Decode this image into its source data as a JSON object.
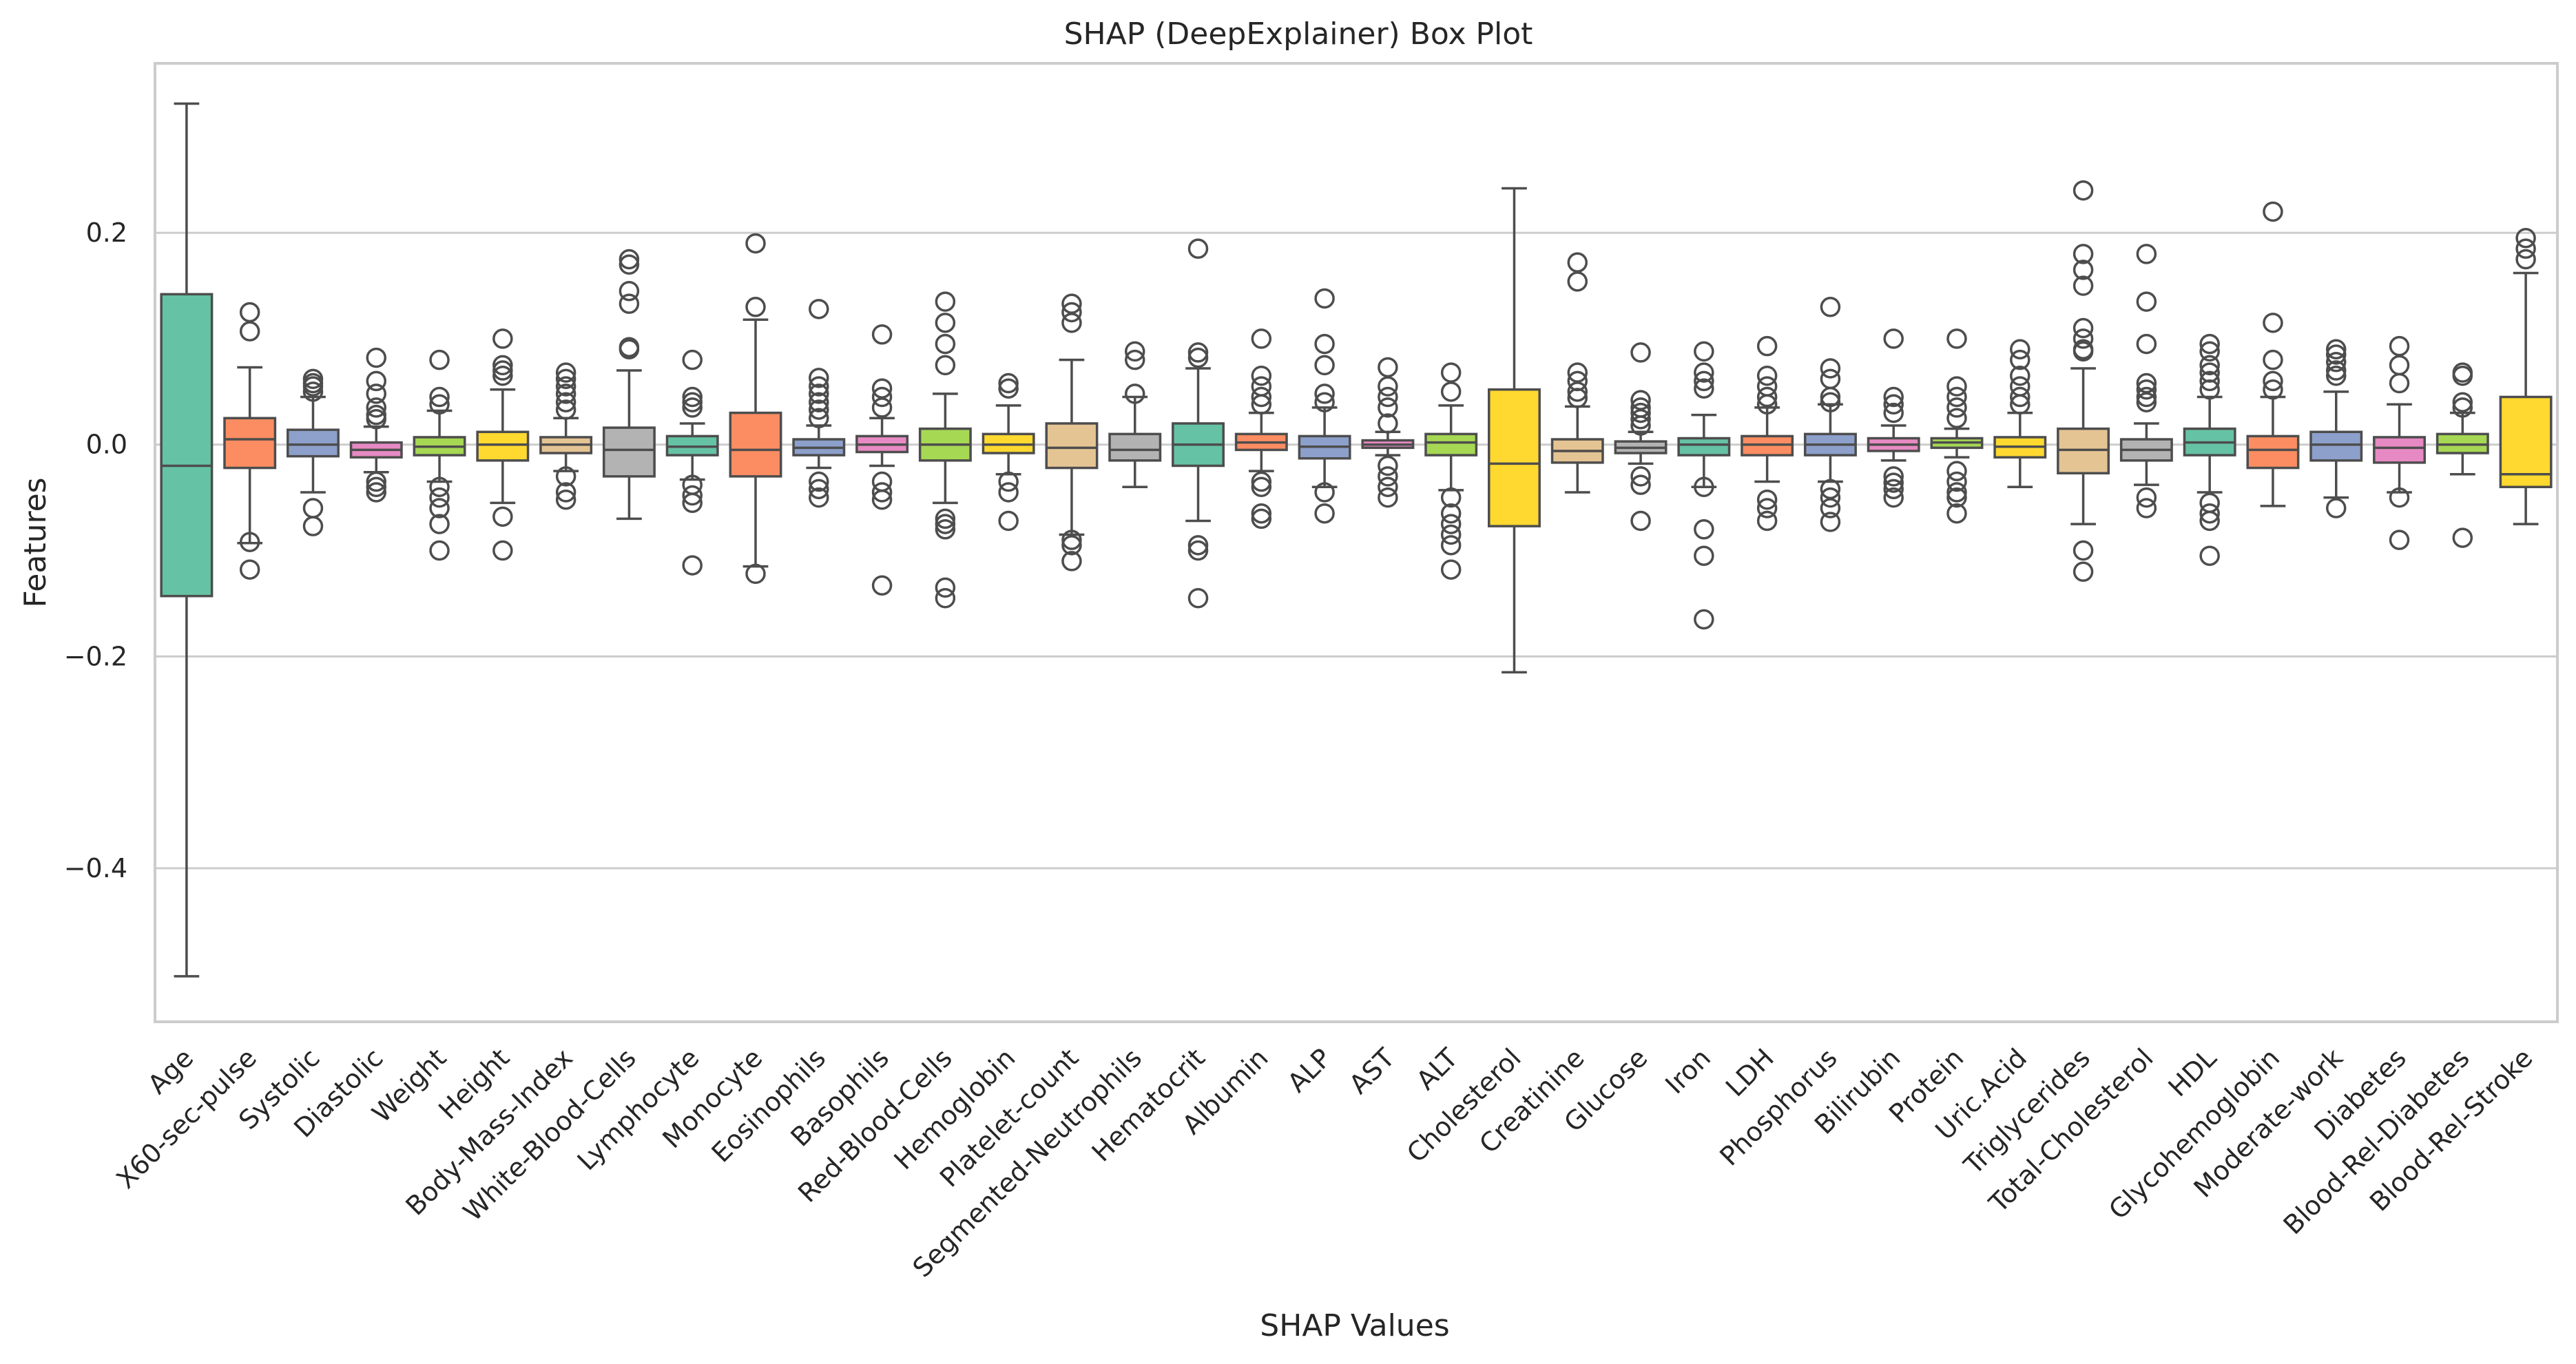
{
  "chart_data": {
    "type": "box",
    "title": "SHAP (DeepExplainer) Box Plot",
    "xlabel": "SHAP Values",
    "ylabel": "Features",
    "ylim": [
      -0.545,
      0.36
    ],
    "yticks": [
      0.2,
      0.0,
      -0.2,
      -0.4
    ],
    "ytick_labels": [
      "0.2",
      "0.0",
      "−0.2",
      "−0.4"
    ],
    "grid": "horizontal",
    "palette": [
      "#66c2a5",
      "#fc8d62",
      "#8da0cb",
      "#e78ac3",
      "#a6d854",
      "#ffd92f",
      "#e5c494",
      "#b3b3b3"
    ],
    "box_edge_color": "#4d4d4d",
    "series": [
      {
        "name": "Age",
        "stats": [
          -0.502,
          -0.143,
          -0.02,
          0.142,
          0.322
        ],
        "outliers": []
      },
      {
        "name": "X60-sec-pulse",
        "stats": [
          -0.093,
          -0.022,
          0.005,
          0.025,
          0.073
        ],
        "outliers": [
          0.125,
          0.107,
          -0.092,
          -0.118
        ]
      },
      {
        "name": "Systolic",
        "stats": [
          -0.045,
          -0.011,
          0.0,
          0.014,
          0.045
        ],
        "outliers": [
          0.062,
          0.058,
          0.055,
          0.05,
          -0.06,
          -0.077
        ]
      },
      {
        "name": "Diastolic",
        "stats": [
          -0.026,
          -0.012,
          -0.005,
          0.002,
          0.017
        ],
        "outliers": [
          0.082,
          0.06,
          0.048,
          0.035,
          0.028,
          0.024,
          -0.035,
          -0.04,
          -0.045
        ]
      },
      {
        "name": "Weight",
        "stats": [
          -0.035,
          -0.01,
          -0.002,
          0.007,
          0.032
        ],
        "outliers": [
          0.08,
          0.045,
          0.038,
          -0.04,
          -0.05,
          -0.06,
          -0.075,
          -0.1
        ]
      },
      {
        "name": "Height",
        "stats": [
          -0.055,
          -0.015,
          0.0,
          0.012,
          0.052
        ],
        "outliers": [
          0.1,
          0.075,
          0.07,
          0.065,
          -0.068,
          -0.1
        ]
      },
      {
        "name": "Body-Mass-Index",
        "stats": [
          -0.025,
          -0.008,
          0.0,
          0.007,
          0.025
        ],
        "outliers": [
          0.068,
          0.062,
          0.055,
          0.048,
          0.04,
          0.033,
          -0.03,
          -0.045,
          -0.052
        ]
      },
      {
        "name": "White-Blood-Cells",
        "stats": [
          -0.07,
          -0.03,
          -0.005,
          0.016,
          0.07
        ],
        "outliers": [
          0.175,
          0.17,
          0.145,
          0.133,
          0.092,
          0.09
        ]
      },
      {
        "name": "Lymphocyte",
        "stats": [
          -0.033,
          -0.01,
          -0.002,
          0.008,
          0.02
        ],
        "outliers": [
          0.08,
          0.045,
          0.04,
          0.035,
          -0.038,
          -0.048,
          -0.055,
          -0.114
        ]
      },
      {
        "name": "Monocyte",
        "stats": [
          -0.115,
          -0.03,
          -0.005,
          0.03,
          0.118
        ],
        "outliers": [
          0.19,
          0.13,
          -0.122
        ]
      },
      {
        "name": "Eosinophils",
        "stats": [
          -0.022,
          -0.01,
          -0.003,
          0.005,
          0.018
        ],
        "outliers": [
          0.128,
          0.063,
          0.055,
          0.048,
          0.04,
          0.033,
          0.025,
          -0.035,
          -0.042,
          -0.05
        ]
      },
      {
        "name": "Basophils",
        "stats": [
          -0.02,
          -0.007,
          0.0,
          0.008,
          0.025
        ],
        "outliers": [
          0.104,
          0.053,
          0.045,
          0.035,
          -0.035,
          -0.045,
          -0.052,
          -0.133
        ]
      },
      {
        "name": "Red-Blood-Cells",
        "stats": [
          -0.055,
          -0.015,
          0.0,
          0.015,
          0.048
        ],
        "outliers": [
          0.135,
          0.115,
          0.095,
          0.075,
          -0.07,
          -0.075,
          -0.08,
          -0.135,
          -0.145
        ]
      },
      {
        "name": "Hemoglobin",
        "stats": [
          -0.028,
          -0.008,
          0.0,
          0.01,
          0.037
        ],
        "outliers": [
          0.058,
          0.053,
          -0.035,
          -0.045,
          -0.072
        ]
      },
      {
        "name": "Platelet-count",
        "stats": [
          -0.085,
          -0.022,
          -0.003,
          0.02,
          0.08
        ],
        "outliers": [
          0.133,
          0.125,
          0.115,
          -0.09,
          -0.095,
          -0.11
        ]
      },
      {
        "name": "Segmented-Neutrophils",
        "stats": [
          -0.04,
          -0.015,
          -0.005,
          0.01,
          0.045
        ],
        "outliers": [
          0.088,
          0.08,
          0.048
        ]
      },
      {
        "name": "Hematocrit",
        "stats": [
          -0.072,
          -0.02,
          0.0,
          0.02,
          0.072
        ],
        "outliers": [
          0.185,
          0.087,
          0.082,
          -0.095,
          -0.1,
          -0.145
        ]
      },
      {
        "name": "Albumin",
        "stats": [
          -0.025,
          -0.005,
          0.002,
          0.01,
          0.03
        ],
        "outliers": [
          0.1,
          0.065,
          0.055,
          0.045,
          0.038,
          -0.035,
          -0.04,
          -0.065,
          -0.07
        ]
      },
      {
        "name": "ALP",
        "stats": [
          -0.04,
          -0.013,
          -0.002,
          0.008,
          0.035
        ],
        "outliers": [
          0.138,
          0.095,
          0.075,
          0.048,
          0.04,
          -0.045,
          -0.065
        ]
      },
      {
        "name": "AST",
        "stats": [
          -0.01,
          -0.003,
          0.0,
          0.004,
          0.012
        ],
        "outliers": [
          0.073,
          0.055,
          0.045,
          0.035,
          0.02,
          -0.02,
          -0.03,
          -0.04,
          -0.05
        ]
      },
      {
        "name": "ALT",
        "stats": [
          -0.043,
          -0.01,
          0.002,
          0.01,
          0.037
        ],
        "outliers": [
          0.068,
          0.05,
          -0.05,
          -0.065,
          -0.075,
          -0.085,
          -0.095,
          -0.118
        ]
      },
      {
        "name": "Cholesterol",
        "stats": [
          -0.215,
          -0.077,
          -0.018,
          0.052,
          0.242
        ],
        "outliers": []
      },
      {
        "name": "Creatinine",
        "stats": [
          -0.045,
          -0.017,
          -0.006,
          0.005,
          0.036
        ],
        "outliers": [
          0.172,
          0.154,
          0.068,
          0.06,
          0.05,
          0.044
        ]
      },
      {
        "name": "Glucose",
        "stats": [
          -0.018,
          -0.008,
          -0.003,
          0.003,
          0.012
        ],
        "outliers": [
          0.087,
          0.042,
          0.035,
          0.03,
          0.024,
          0.018,
          -0.03,
          -0.038,
          -0.072
        ]
      },
      {
        "name": "Iron",
        "stats": [
          -0.04,
          -0.01,
          0.0,
          0.006,
          0.028
        ],
        "outliers": [
          0.088,
          0.068,
          0.06,
          0.053,
          -0.04,
          -0.08,
          -0.105,
          -0.165
        ]
      },
      {
        "name": "LDH",
        "stats": [
          -0.035,
          -0.01,
          0.0,
          0.008,
          0.035
        ],
        "outliers": [
          0.093,
          0.065,
          0.055,
          0.045,
          0.038,
          -0.052,
          -0.06,
          -0.072
        ]
      },
      {
        "name": "Phosphorus",
        "stats": [
          -0.035,
          -0.01,
          0.0,
          0.01,
          0.038
        ],
        "outliers": [
          0.13,
          0.072,
          0.062,
          0.045,
          0.04,
          -0.042,
          -0.05,
          -0.06,
          -0.073
        ]
      },
      {
        "name": "Bilirubin",
        "stats": [
          -0.015,
          -0.006,
          0.0,
          0.006,
          0.018
        ],
        "outliers": [
          0.1,
          0.045,
          0.038,
          0.03,
          -0.03,
          -0.036,
          -0.042,
          -0.05
        ]
      },
      {
        "name": "Protein",
        "stats": [
          -0.012,
          -0.003,
          0.002,
          0.006,
          0.015
        ],
        "outliers": [
          0.1,
          0.055,
          0.045,
          0.035,
          0.025,
          -0.025,
          -0.035,
          -0.045,
          -0.05,
          -0.065
        ]
      },
      {
        "name": "Uric.Acid",
        "stats": [
          -0.04,
          -0.012,
          -0.002,
          0.007,
          0.03
        ],
        "outliers": [
          0.09,
          0.08,
          0.065,
          0.055,
          0.045,
          0.038
        ]
      },
      {
        "name": "Triglycerides",
        "stats": [
          -0.075,
          -0.027,
          -0.005,
          0.015,
          0.072
        ],
        "outliers": [
          0.24,
          0.18,
          0.165,
          0.15,
          0.11,
          0.1,
          0.09,
          0.088,
          -0.1,
          -0.12
        ]
      },
      {
        "name": "Total-Cholesterol",
        "stats": [
          -0.038,
          -0.015,
          -0.005,
          0.005,
          0.02
        ],
        "outliers": [
          0.18,
          0.135,
          0.095,
          0.058,
          0.052,
          0.045,
          0.04,
          -0.05,
          -0.06
        ]
      },
      {
        "name": "HDL",
        "stats": [
          -0.045,
          -0.01,
          0.002,
          0.015,
          0.045
        ],
        "outliers": [
          0.095,
          0.088,
          0.075,
          0.068,
          0.06,
          0.052,
          -0.055,
          -0.065,
          -0.072,
          -0.105
        ]
      },
      {
        "name": "Glycohemoglobin",
        "stats": [
          -0.058,
          -0.022,
          -0.005,
          0.008,
          0.045
        ],
        "outliers": [
          0.22,
          0.115,
          0.08,
          0.06,
          0.052
        ]
      },
      {
        "name": "Moderate-work",
        "stats": [
          -0.05,
          -0.015,
          0.0,
          0.012,
          0.05
        ],
        "outliers": [
          0.09,
          0.085,
          0.078,
          0.07,
          0.065,
          -0.06
        ]
      },
      {
        "name": "Diabetes",
        "stats": [
          -0.045,
          -0.017,
          -0.003,
          0.007,
          0.038
        ],
        "outliers": [
          0.093,
          0.075,
          0.058,
          -0.05,
          -0.09
        ]
      },
      {
        "name": "Blood-Rel-Diabetes",
        "stats": [
          -0.028,
          -0.008,
          0.0,
          0.01,
          0.03
        ],
        "outliers": [
          0.068,
          0.065,
          0.04,
          0.035,
          -0.088
        ]
      },
      {
        "name": "Blood-Rel-Stroke",
        "stats": [
          -0.075,
          -0.04,
          -0.028,
          0.045,
          0.162
        ],
        "outliers": [
          0.195,
          0.185,
          0.175
        ]
      }
    ]
  }
}
